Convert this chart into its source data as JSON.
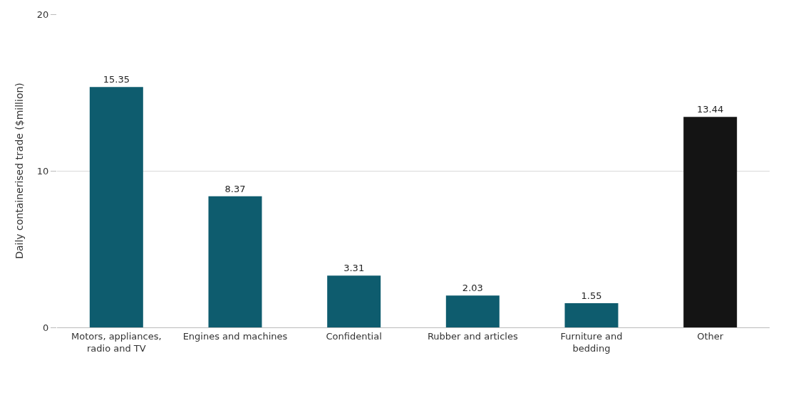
{
  "chart_data": {
    "type": "bar",
    "ylabel": "Daily containerised trade ($million)",
    "categories": [
      "Motors, appliances, radio and TV",
      "Engines and machines",
      "Confidential",
      "Rubber and articles",
      "Furniture and bedding",
      "Other"
    ],
    "values": [
      15.35,
      8.37,
      3.31,
      2.03,
      1.55,
      13.44
    ],
    "colors": [
      "#0e5c6e",
      "#0e5c6e",
      "#0e5c6e",
      "#0e5c6e",
      "#0e5c6e",
      "#141414"
    ],
    "ylim": [
      0,
      20
    ],
    "yticks": [
      0,
      10,
      20
    ],
    "grid": "y",
    "data_labels": true,
    "legend": false
  }
}
